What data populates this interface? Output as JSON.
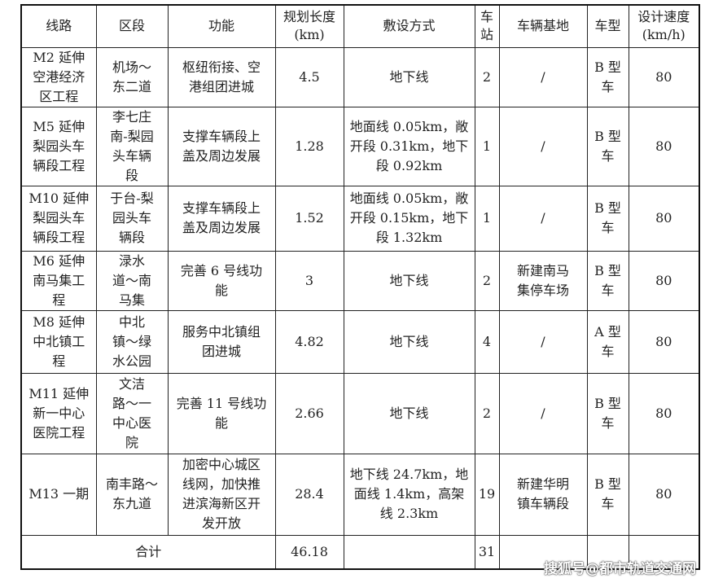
{
  "headers": [
    "线路",
    "区段",
    "功能",
    "规划长度\n(km)",
    "敷设方式",
    "车\n站",
    "车辆基地",
    "车型",
    "设计速度\n(km/h)"
  ],
  "rows": [
    [
      "M2 延伸\n空港经济\n区工程",
      "机场～\n东二道",
      "枢纽衔接、空\n港组团进城",
      "4.5",
      "地下线",
      "2",
      "/",
      "B 型\n车",
      "80"
    ],
    [
      "M5 延伸\n梨园头车\n辆段工程",
      "李七庄\n南-梨园\n头车辆\n段",
      "支撑车辆段上\n盖及周边发展",
      "1.28",
      "地面线 0.05km，敞\n开段 0.31km，地下\n段 0.92km",
      "1",
      "/",
      "B 型\n车",
      "80"
    ],
    [
      "M10 延伸\n梨园头车\n辆段工程",
      "于台-梨\n园头车\n辆段",
      "支撑车辆段上\n盖及周边发展",
      "1.52",
      "地面线 0.05km，敞\n开段 0.15km，地下\n段 1.32km",
      "1",
      "/",
      "B 型\n车",
      "80"
    ],
    [
      "M6 延伸\n南马集工\n程",
      "渌水\n道～南\n马集",
      "完善 6 号线功\n能",
      "3",
      "地下线",
      "2",
      "新建南马\n集停车场",
      "B 型\n车",
      "80"
    ],
    [
      "M8 延伸\n中北镇工\n程",
      "中北\n镇～绿\n水公园",
      "服务中北镇组\n团进城",
      "4.82",
      "地下线",
      "4",
      "/",
      "A 型\n车",
      "80"
    ],
    [
      "M11 延伸\n新一中心\n医院工程",
      "文洁\n路～一\n中心医\n院",
      "完善 11 号线功\n能",
      "2.66",
      "地下线",
      "2",
      "/",
      "B 型\n车",
      "80"
    ],
    [
      "M13 一期",
      "南丰路～\n东九道",
      "加密中心城区\n线网，加快推\n进滨海新区开\n发开放",
      "28.4",
      "地下线 24.7km，地\n面线 1.4km，高架\n线 2.3km",
      "19",
      "新建华明\n镇车辆段",
      "B 型\n车",
      "80"
    ]
  ],
  "total": {
    "label": "合计",
    "length": "46.18",
    "stations": "31"
  },
  "watermark": "搜狐号@都市轨道交通网"
}
